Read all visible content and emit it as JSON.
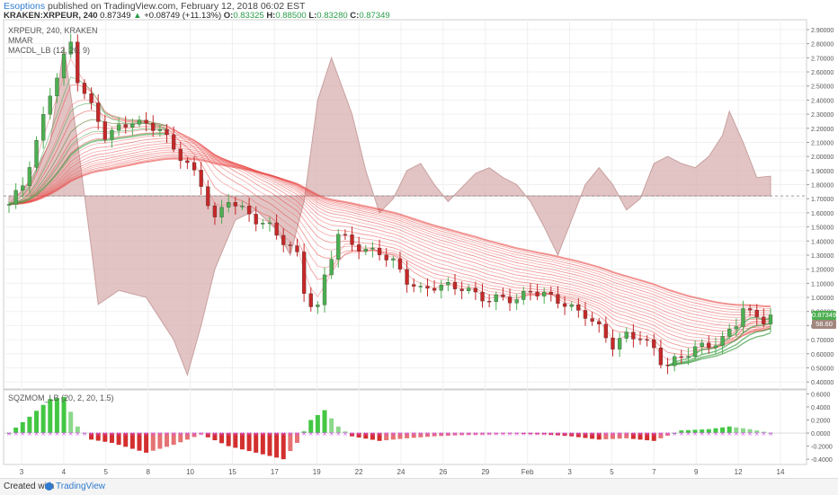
{
  "header": {
    "author": "Esoptions",
    "published": " published on TradingView.com, February 12, 2018 06:02 EST",
    "symbol": "KRAKEN:XRPEUR, 240",
    "last": "0.87349",
    "change": "+0.08749 (+11.13%)",
    "o_label": "O:",
    "o": "0.83325",
    "h_label": "H:",
    "h": "0.88500",
    "l_label": "L:",
    "l": "0.83280",
    "c_label": "C:",
    "c": "0.87349"
  },
  "legend": {
    "line1": "XRPEUR, 240, KRAKEN",
    "line2": "MMAR",
    "line3": "MACDL_LB (12, 26, 9)",
    "indicator": "SQZMOM_LB (20, 2, 20, 1.5)"
  },
  "footer": {
    "created": "Created with",
    "brand": "TradingView"
  },
  "price_tags": {
    "last": "0.87349",
    "macd": "58.60"
  },
  "colors": {
    "bull": "#4caf50",
    "bear": "#c62828",
    "macd_fill": "#d8b0b0",
    "macd_line": "#c9a0a0",
    "ribbon_red": "#e53935",
    "ribbon_green": "#43a047",
    "sqz_on": "#e040fb",
    "hist_green": "#66bb6a",
    "hist_red": "#e57373",
    "tag_last": "#4caf50",
    "tag_macd": "#a1887f"
  },
  "chart_data": {
    "type": "candlestick",
    "x_ticks": [
      "3",
      "4",
      "5",
      "8",
      "10",
      "15",
      "17",
      "19",
      "22",
      "24",
      "26",
      "29",
      "Feb",
      "3",
      "5",
      "7",
      "9",
      "12",
      "14"
    ],
    "price_axis": {
      "ticks": [
        "2.90000",
        "2.80000",
        "2.70000",
        "2.60000",
        "2.50000",
        "2.40000",
        "2.30000",
        "2.20000",
        "2.10000",
        "2.00000",
        "1.90000",
        "1.80000",
        "1.70000",
        "1.60000",
        "1.50000",
        "1.40000",
        "1.30000",
        "1.20000",
        "1.10000",
        "1.00000",
        "0.90000",
        "0.80000",
        "0.70000",
        "0.60000",
        "0.50000",
        "0.40000"
      ],
      "range": [
        0.35,
        2.97
      ]
    },
    "macd_zero_level": 1.72,
    "momentum_axis": {
      "ticks": [
        "0.6000",
        "0.4000",
        "0.2000",
        "0.0000",
        "-0.2000",
        "-0.4000"
      ],
      "range": [
        -0.48,
        0.66
      ]
    },
    "price_path": [
      [
        0,
        1.66
      ],
      [
        2,
        1.8
      ],
      [
        4,
        2.1
      ],
      [
        6,
        2.45
      ],
      [
        8,
        2.7
      ],
      [
        9,
        2.8
      ],
      [
        10,
        2.55
      ],
      [
        12,
        2.35
      ],
      [
        14,
        2.15
      ],
      [
        16,
        2.2
      ],
      [
        18,
        2.25
      ],
      [
        20,
        2.22
      ],
      [
        22,
        2.2
      ],
      [
        24,
        2.05
      ],
      [
        26,
        1.95
      ],
      [
        28,
        1.8
      ],
      [
        30,
        1.55
      ],
      [
        31,
        1.62
      ],
      [
        32,
        1.7
      ],
      [
        34,
        1.62
      ],
      [
        36,
        1.55
      ],
      [
        38,
        1.5
      ],
      [
        40,
        1.4
      ],
      [
        42,
        1.3
      ],
      [
        43,
        1.05
      ],
      [
        44,
        0.95
      ],
      [
        45,
        0.92
      ],
      [
        46,
        1.15
      ],
      [
        48,
        1.45
      ],
      [
        50,
        1.38
      ],
      [
        52,
        1.33
      ],
      [
        54,
        1.32
      ],
      [
        56,
        1.25
      ],
      [
        58,
        1.12
      ],
      [
        60,
        1.05
      ],
      [
        62,
        1.08
      ],
      [
        64,
        1.08
      ],
      [
        66,
        1.07
      ],
      [
        68,
        1.02
      ],
      [
        70,
        0.98
      ],
      [
        72,
        1.0
      ],
      [
        74,
        0.98
      ],
      [
        76,
        1.05
      ],
      [
        78,
        1.02
      ],
      [
        80,
        0.98
      ],
      [
        82,
        0.92
      ],
      [
        84,
        0.88
      ],
      [
        86,
        0.78
      ],
      [
        88,
        0.66
      ],
      [
        90,
        0.73
      ],
      [
        92,
        0.72
      ],
      [
        94,
        0.63
      ],
      [
        95,
        0.55
      ],
      [
        96,
        0.52
      ],
      [
        98,
        0.58
      ],
      [
        100,
        0.64
      ],
      [
        102,
        0.66
      ],
      [
        104,
        0.7
      ],
      [
        106,
        0.82
      ],
      [
        107,
        0.93
      ],
      [
        108,
        0.88
      ],
      [
        110,
        0.84
      ],
      [
        111,
        0.87
      ]
    ],
    "macd_path": [
      [
        0,
        1.66
      ],
      [
        3,
        1.82
      ],
      [
        6,
        2.1
      ],
      [
        8,
        2.78
      ],
      [
        10,
        2.1
      ],
      [
        12,
        1.35
      ],
      [
        13,
        0.95
      ],
      [
        16,
        1.05
      ],
      [
        20,
        1.0
      ],
      [
        24,
        0.7
      ],
      [
        26,
        0.45
      ],
      [
        28,
        0.8
      ],
      [
        30,
        1.2
      ],
      [
        33,
        1.55
      ],
      [
        36,
        1.62
      ],
      [
        39,
        1.48
      ],
      [
        41,
        1.3
      ],
      [
        43,
        1.68
      ],
      [
        45,
        2.4
      ],
      [
        47,
        2.7
      ],
      [
        50,
        2.3
      ],
      [
        52,
        1.9
      ],
      [
        54,
        1.6
      ],
      [
        56,
        1.7
      ],
      [
        58,
        1.9
      ],
      [
        60,
        1.95
      ],
      [
        62,
        1.8
      ],
      [
        64,
        1.68
      ],
      [
        66,
        1.78
      ],
      [
        68,
        1.88
      ],
      [
        70,
        1.92
      ],
      [
        72,
        1.85
      ],
      [
        74,
        1.8
      ],
      [
        76,
        1.68
      ],
      [
        78,
        1.5
      ],
      [
        80,
        1.3
      ],
      [
        82,
        1.55
      ],
      [
        84,
        1.8
      ],
      [
        86,
        1.92
      ],
      [
        88,
        1.8
      ],
      [
        90,
        1.62
      ],
      [
        92,
        1.7
      ],
      [
        94,
        1.95
      ],
      [
        96,
        2.0
      ],
      [
        98,
        1.95
      ],
      [
        100,
        1.92
      ],
      [
        102,
        2.0
      ],
      [
        104,
        2.15
      ],
      [
        105,
        2.32
      ],
      [
        107,
        2.1
      ],
      [
        109,
        1.85
      ],
      [
        111,
        1.86
      ]
    ],
    "momentum_path": [
      [
        0,
        0.0
      ],
      [
        3,
        0.25
      ],
      [
        6,
        0.52
      ],
      [
        8,
        0.55
      ],
      [
        10,
        0.1
      ],
      [
        12,
        -0.1
      ],
      [
        15,
        -0.15
      ],
      [
        20,
        -0.3
      ],
      [
        24,
        -0.18
      ],
      [
        28,
        -0.02
      ],
      [
        32,
        -0.2
      ],
      [
        36,
        -0.3
      ],
      [
        40,
        -0.4
      ],
      [
        42,
        -0.15
      ],
      [
        44,
        0.2
      ],
      [
        46,
        0.35
      ],
      [
        48,
        0.1
      ],
      [
        50,
        -0.05
      ],
      [
        54,
        -0.12
      ],
      [
        58,
        -0.08
      ],
      [
        62,
        -0.05
      ],
      [
        66,
        -0.03
      ],
      [
        70,
        -0.02
      ],
      [
        74,
        -0.01
      ],
      [
        78,
        -0.02
      ],
      [
        82,
        -0.05
      ],
      [
        86,
        -0.1
      ],
      [
        90,
        -0.08
      ],
      [
        94,
        -0.12
      ],
      [
        98,
        0.04
      ],
      [
        102,
        0.06
      ],
      [
        105,
        0.1
      ],
      [
        108,
        0.06
      ],
      [
        111,
        0.0
      ]
    ]
  }
}
